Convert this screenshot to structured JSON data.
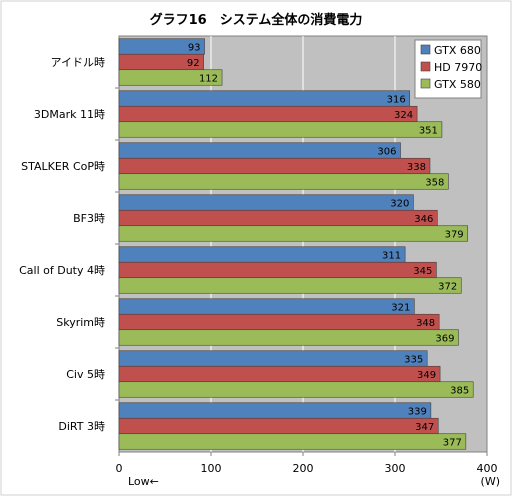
{
  "chart_data": {
    "type": "bar",
    "orientation": "horizontal",
    "title": "グラフ16　システム全体の消費電力",
    "categories": [
      "アイドル時",
      "3DMark 11時",
      "STALKER CoP時",
      "BF3時",
      "Call of Duty 4時",
      "Skyrim時",
      "Civ 5時",
      "DiRT 3時"
    ],
    "series": [
      {
        "name": "GTX 680",
        "color": "#4f81bd",
        "values": [
          93,
          316,
          306,
          320,
          311,
          321,
          335,
          339
        ]
      },
      {
        "name": "HD 7970",
        "color": "#c0504d",
        "values": [
          92,
          324,
          338,
          346,
          345,
          348,
          349,
          347
        ]
      },
      {
        "name": "GTX 580",
        "color": "#9bbb59",
        "values": [
          112,
          351,
          358,
          379,
          372,
          369,
          385,
          377
        ]
      }
    ],
    "xlim": [
      0,
      400
    ],
    "xticks": [
      0,
      100,
      200,
      300,
      400
    ],
    "xlabel_left": "Low←",
    "xunit": "(W)",
    "grid": true,
    "legend_position": "top-right",
    "plot_background": "#c0c0c0"
  }
}
